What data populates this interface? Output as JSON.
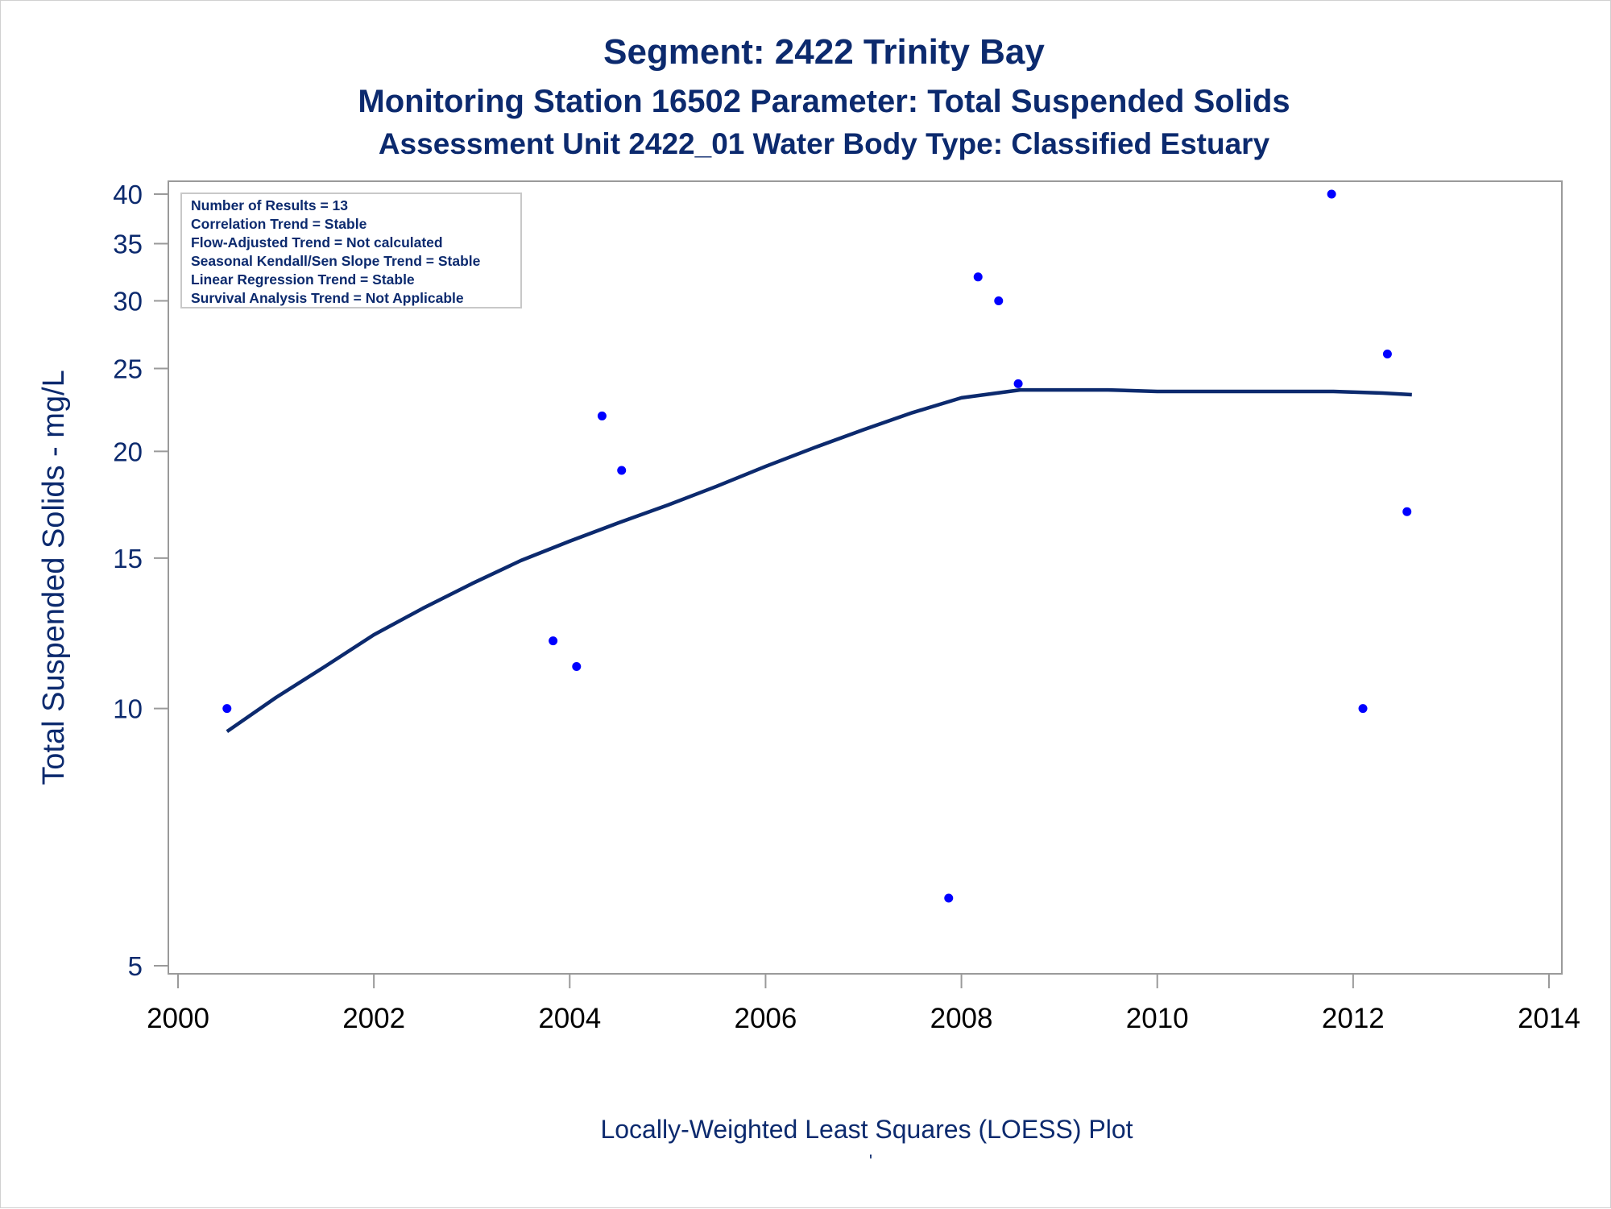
{
  "colors": {
    "title": "#0c2a6e",
    "line": "#0c2a6e",
    "point": "#0000ff",
    "axis": "#9a9a9a",
    "background": "#ffffff"
  },
  "chart_data": {
    "type": "scatter",
    "title": "Segment: 2422  Trinity Bay",
    "subtitle": "Monitoring Station 16502 Parameter: Total Suspended Solids",
    "subtitle2": "Assessment Unit 2422_01   Water Body Type: Classified Estuary",
    "xlabel": "Locally-Weighted Least Squares (LOESS) Plot",
    "ylabel": "Total Suspended Solids - mg/L",
    "footnote": "'",
    "xlim": [
      2000,
      2014
    ],
    "ylim": [
      5,
      40
    ],
    "yscale": "log",
    "grid": false,
    "x_ticks": [
      2000,
      2002,
      2004,
      2006,
      2008,
      2010,
      2012,
      2014
    ],
    "y_ticks": [
      5,
      10,
      15,
      20,
      25,
      30,
      35,
      40
    ],
    "stats_box": [
      "Number of Results = 13",
      "Correlation Trend = Stable",
      "Flow-Adjusted Trend = Not calculated",
      "Seasonal Kendall/Sen Slope Trend = Stable",
      "Linear Regression Trend = Stable",
      "Survival Analysis Trend = Not Applicable"
    ],
    "series": [
      {
        "type": "scatter",
        "points": [
          [
            2000.5,
            10
          ],
          [
            2003.83,
            12
          ],
          [
            2004.07,
            11.2
          ],
          [
            2004.33,
            22
          ],
          [
            2004.53,
            19
          ],
          [
            2007.87,
            6
          ],
          [
            2008.17,
            32
          ],
          [
            2008.38,
            30
          ],
          [
            2008.58,
            24
          ],
          [
            2011.78,
            40
          ],
          [
            2012.1,
            10
          ],
          [
            2012.35,
            26
          ],
          [
            2012.55,
            17
          ]
        ]
      },
      {
        "type": "line",
        "points": [
          [
            2000.5,
            9.4
          ],
          [
            2001.0,
            10.3
          ],
          [
            2001.5,
            11.2
          ],
          [
            2002.0,
            12.2
          ],
          [
            2002.5,
            13.1
          ],
          [
            2003.0,
            14.0
          ],
          [
            2003.5,
            14.9
          ],
          [
            2004.0,
            15.7
          ],
          [
            2004.5,
            16.5
          ],
          [
            2005.0,
            17.3
          ],
          [
            2005.5,
            18.2
          ],
          [
            2006.0,
            19.2
          ],
          [
            2006.5,
            20.2
          ],
          [
            2007.0,
            21.2
          ],
          [
            2007.5,
            22.2
          ],
          [
            2008.0,
            23.1
          ],
          [
            2008.6,
            23.6
          ],
          [
            2009.5,
            23.6
          ],
          [
            2010.0,
            23.5
          ],
          [
            2011.0,
            23.5
          ],
          [
            2011.8,
            23.5
          ],
          [
            2012.3,
            23.4
          ],
          [
            2012.6,
            23.3
          ]
        ]
      }
    ]
  }
}
